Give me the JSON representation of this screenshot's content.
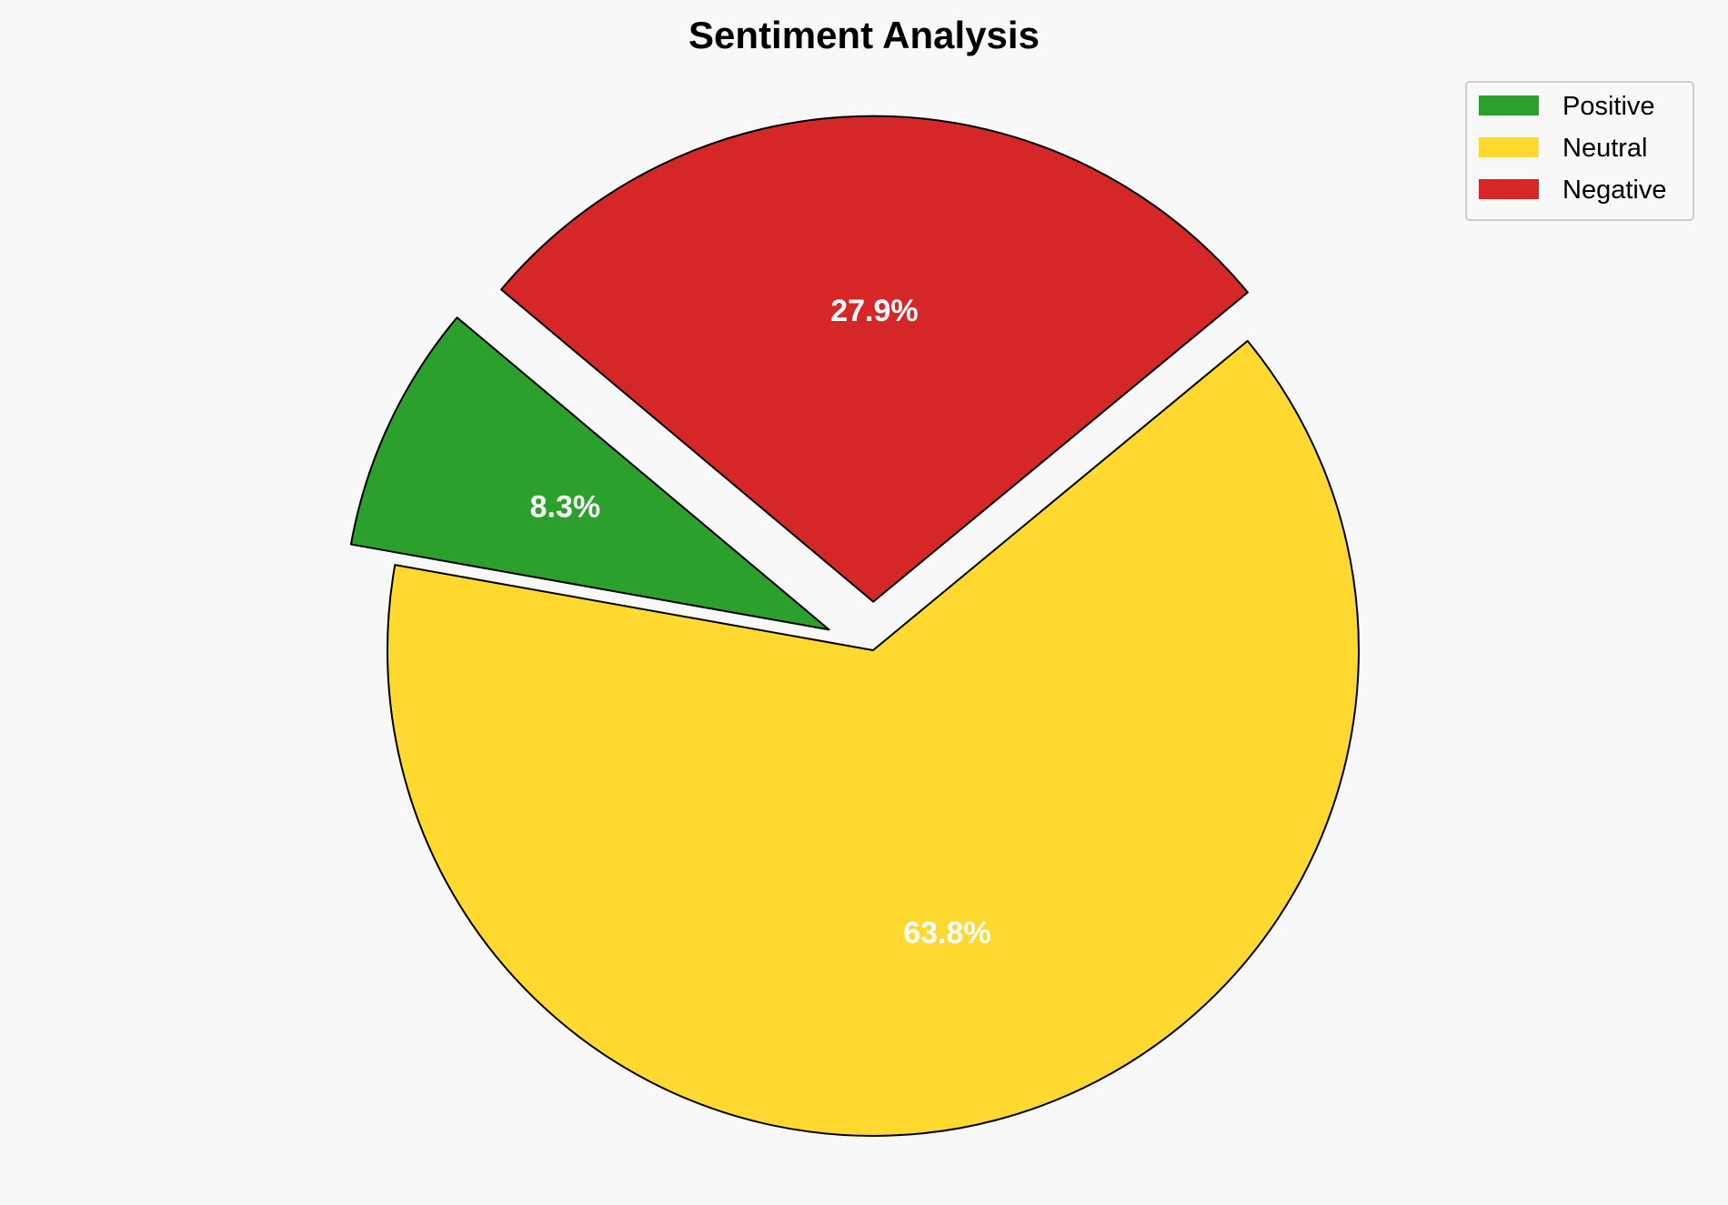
{
  "chart_data": {
    "type": "pie",
    "title": "Sentiment Analysis",
    "categories": [
      "Positive",
      "Neutral",
      "Negative"
    ],
    "values": [
      8.3,
      63.8,
      27.9
    ],
    "labels": [
      "8.3%",
      "63.8%",
      "27.9%"
    ],
    "colors": [
      "#2ca02c",
      "#ffd92f",
      "#d62728"
    ],
    "explode": [
      0.1,
      0,
      0.1
    ],
    "start_angle_deg": 140,
    "direction": "counterclockwise",
    "edge_color": "#000000",
    "label_color": "#ffffff",
    "legend_placement": "top-right",
    "background": "#f8f8f8"
  }
}
